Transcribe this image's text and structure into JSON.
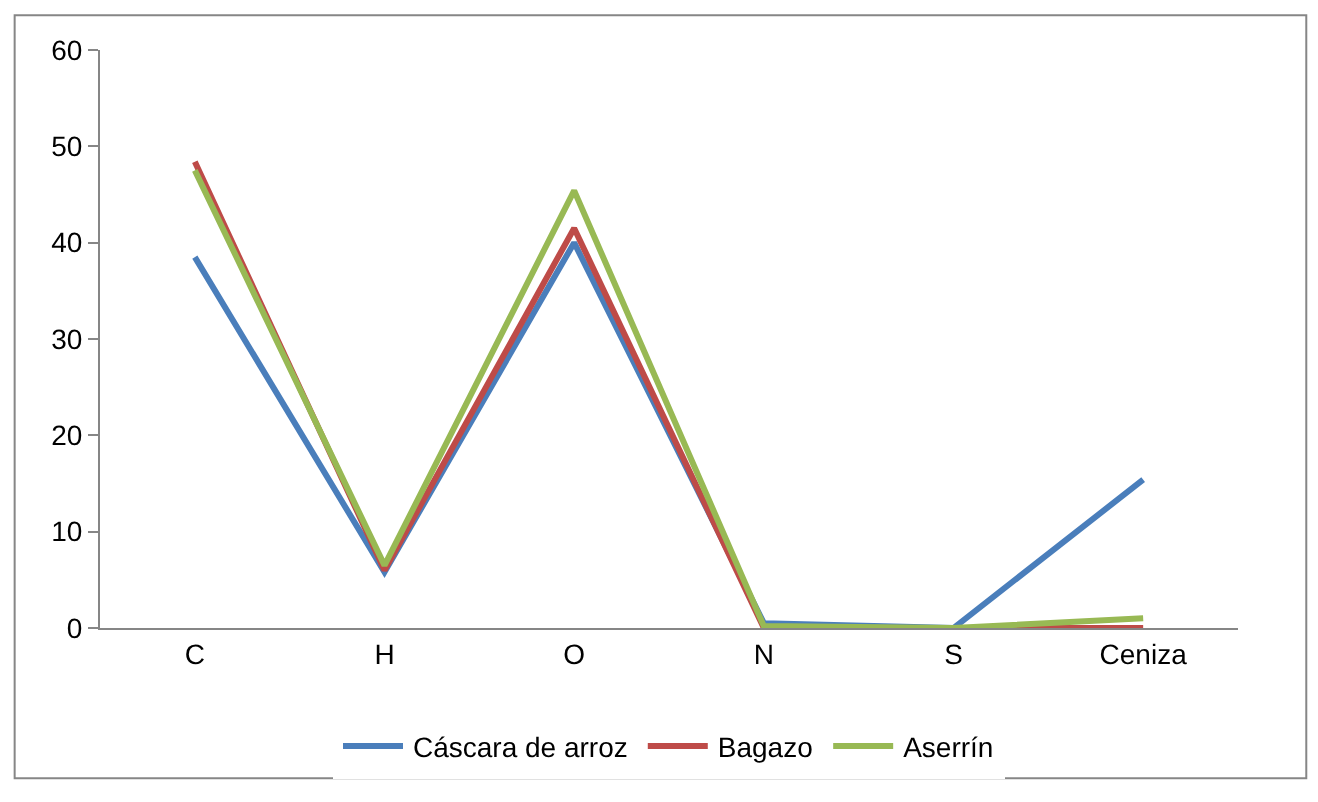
{
  "chart_data": {
    "type": "line",
    "categories": [
      "C",
      "H",
      "O",
      "N",
      "S",
      "Ceniza"
    ],
    "series": [
      {
        "name": "Cáscara de arroz",
        "color": "#4a7ebb",
        "values": [
          38.5,
          5.8,
          40,
          0.5,
          0,
          15.4
        ]
      },
      {
        "name": "Bagazo",
        "color": "#be4b48",
        "values": [
          48.4,
          6,
          41.5,
          0,
          0,
          0
        ]
      },
      {
        "name": "Aserrín",
        "color": "#98b954",
        "values": [
          47.5,
          6.5,
          45.4,
          0.2,
          0,
          1
        ]
      }
    ],
    "ylim": [
      0,
      60
    ],
    "yticks": [
      0,
      10,
      20,
      30,
      40,
      50,
      60
    ],
    "legend": "bottom",
    "marker": "none",
    "line_style": "solid"
  }
}
